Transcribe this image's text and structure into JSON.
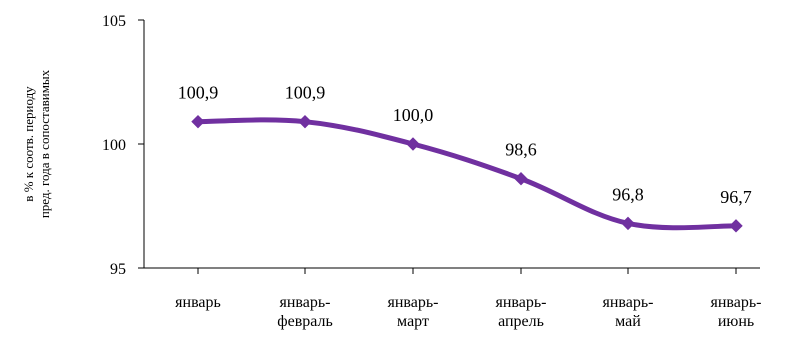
{
  "chart_data": {
    "type": "line",
    "title": "",
    "xlabel": "",
    "ylabel_lines": [
      "в % к соотв. периоду",
      "пред. года в сопоставимых"
    ],
    "categories": [
      [
        "январь"
      ],
      [
        "январь-",
        "февраль"
      ],
      [
        "январь-",
        "март"
      ],
      [
        "январь-",
        "апрель"
      ],
      [
        "январь-",
        "май"
      ],
      [
        "январь-",
        "июнь"
      ]
    ],
    "values": [
      100.9,
      100.9,
      100.0,
      98.6,
      96.8,
      96.7
    ],
    "data_labels": [
      "100,9",
      "100,9",
      "100,0",
      "98,6",
      "96,8",
      "96,7"
    ],
    "ylim": [
      95,
      105
    ],
    "yticks": [
      95,
      100,
      105
    ],
    "ytick_labels": [
      "95",
      "100",
      "105"
    ],
    "grid": false,
    "legend": "none",
    "line_style": "smooth",
    "marker": "diamond",
    "colors": {
      "series": "#7030A0",
      "axis": "#000000",
      "text": "#000000"
    }
  }
}
